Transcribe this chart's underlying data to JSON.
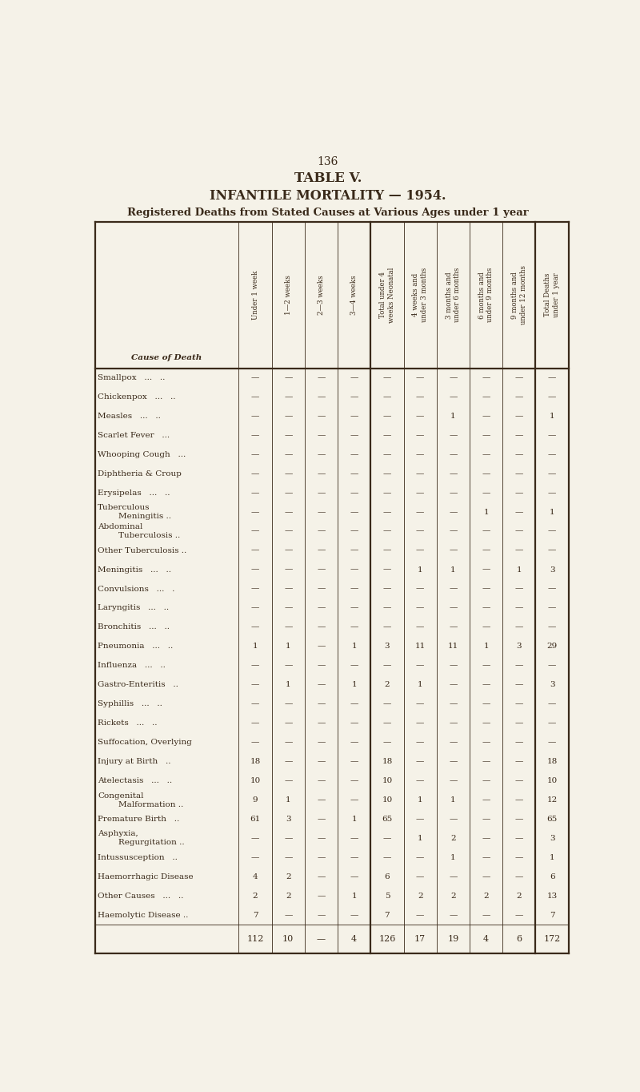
{
  "page_number": "136",
  "title": "TABLE V.",
  "subtitle": "INFANTILE MORTALITY — 1954.",
  "subtitle2": "Registered Deaths from Stated Causes at Various Ages under 1 year",
  "bg_color": "#f5f2e8",
  "text_color": "#3a2a1a",
  "col_headers": [
    "Under 1 week",
    "1—2 weeks",
    "2—3 weeks",
    "3—4 weeks",
    "Total under 4\nweeks Neonatal",
    "4 weeks and\nunder 3 months",
    "3 months and\nunder 6 months",
    "6 months and\nunder 9 months",
    "9 months and\nunder 12 months",
    "Total Deaths\nunder 1 year"
  ],
  "row_header": "Cause of Death",
  "rows": [
    {
      "label": [
        "Smallpox   ...   .."
      ],
      "vals": [
        "—",
        "—",
        "—",
        "—",
        "—",
        "—",
        "—",
        "—",
        "—",
        "—"
      ]
    },
    {
      "label": [
        "Chickenpox   ...   .."
      ],
      "vals": [
        "—",
        "—",
        "—",
        "—",
        "—",
        "—",
        "—",
        "—",
        "—",
        "—"
      ]
    },
    {
      "label": [
        "Measles   ...   .."
      ],
      "vals": [
        "—",
        "—",
        "—",
        "—",
        "—",
        "—",
        "1",
        "—",
        "—",
        "1"
      ]
    },
    {
      "label": [
        "Scarlet Fever   ..."
      ],
      "vals": [
        "—",
        "—",
        "—",
        "—",
        "—",
        "—",
        "—",
        "—",
        "—",
        "—"
      ]
    },
    {
      "label": [
        "Whooping Cough   ..."
      ],
      "vals": [
        "—",
        "—",
        "—",
        "—",
        "—",
        "—",
        "—",
        "—",
        "—",
        "—"
      ]
    },
    {
      "label": [
        "Diphtheria & Croup"
      ],
      "vals": [
        "—",
        "—",
        "—",
        "—",
        "—",
        "—",
        "—",
        "—",
        "—",
        "—"
      ]
    },
    {
      "label": [
        "Erysipelas   ...   .."
      ],
      "vals": [
        "—",
        "—",
        "—",
        "—",
        "—",
        "—",
        "—",
        "—",
        "—",
        "—"
      ]
    },
    {
      "label": [
        "Tuberculous",
        "        Meningitis .."
      ],
      "vals": [
        "—",
        "—",
        "—",
        "—",
        "—",
        "—",
        "—",
        "1",
        "—",
        "1"
      ],
      "two_line": true
    },
    {
      "label": [
        "Abdominal",
        "        Tuberculosis .."
      ],
      "vals": [
        "—",
        "—",
        "—",
        "—",
        "—",
        "—",
        "—",
        "—",
        "—",
        "—"
      ],
      "two_line": true
    },
    {
      "label": [
        "Other Tuberculosis .."
      ],
      "vals": [
        "—",
        "—",
        "—",
        "—",
        "—",
        "—",
        "—",
        "—",
        "—",
        "—"
      ]
    },
    {
      "label": [
        "Meningitis   ...   .."
      ],
      "vals": [
        "—",
        "—",
        "—",
        "—",
        "—",
        "1",
        "1",
        "—",
        "1",
        "3"
      ]
    },
    {
      "label": [
        "Convulsions   ...   ."
      ],
      "vals": [
        "—",
        "—",
        "—",
        "—",
        "—",
        "—",
        "—",
        "—",
        "—",
        "—"
      ]
    },
    {
      "label": [
        "Laryngitis   ...   .."
      ],
      "vals": [
        "—",
        "—",
        "—",
        "—",
        "—",
        "—",
        "—",
        "—",
        "—",
        "—"
      ]
    },
    {
      "label": [
        "Bronchitis   ...   .."
      ],
      "vals": [
        "—",
        "—",
        "—",
        "—",
        "—",
        "—",
        "—",
        "—",
        "—",
        "—"
      ]
    },
    {
      "label": [
        "Pneumonia   ...   .."
      ],
      "vals": [
        "1",
        "1",
        "—",
        "1",
        "3",
        "11",
        "11",
        "1",
        "3",
        "29"
      ]
    },
    {
      "label": [
        "Influenza   ...   .."
      ],
      "vals": [
        "—",
        "—",
        "—",
        "—",
        "—",
        "—",
        "—",
        "—",
        "—",
        "—"
      ]
    },
    {
      "label": [
        "Gastro-Enteritis   .."
      ],
      "vals": [
        "—",
        "1",
        "—",
        "1",
        "2",
        "1",
        "—",
        "—",
        "—",
        "3"
      ]
    },
    {
      "label": [
        "Syphillis   ...   .."
      ],
      "vals": [
        "—",
        "—",
        "—",
        "—",
        "—",
        "—",
        "—",
        "—",
        "—",
        "—"
      ]
    },
    {
      "label": [
        "Rickets   ...   .."
      ],
      "vals": [
        "—",
        "—",
        "—",
        "—",
        "—",
        "—",
        "—",
        "—",
        "—",
        "—"
      ]
    },
    {
      "label": [
        "Suffocation, Overlying"
      ],
      "vals": [
        "—",
        "—",
        "—",
        "—",
        "—",
        "—",
        "—",
        "—",
        "—",
        "—"
      ]
    },
    {
      "label": [
        "Injury at Birth   .."
      ],
      "vals": [
        "18",
        "—",
        "—",
        "—",
        "18",
        "—",
        "—",
        "—",
        "—",
        "18"
      ]
    },
    {
      "label": [
        "Atelectasis   ...   .."
      ],
      "vals": [
        "10",
        "—",
        "—",
        "—",
        "10",
        "—",
        "—",
        "—",
        "—",
        "10"
      ]
    },
    {
      "label": [
        "Congenital",
        "        Malformation .."
      ],
      "vals": [
        "9",
        "1",
        "—",
        "—",
        "10",
        "1",
        "1",
        "—",
        "—",
        "12"
      ],
      "two_line": true
    },
    {
      "label": [
        "Premature Birth   .."
      ],
      "vals": [
        "61",
        "3",
        "—",
        "1",
        "65",
        "—",
        "—",
        "—",
        "—",
        "65"
      ]
    },
    {
      "label": [
        "Asphyxia,",
        "        Regurgitation .."
      ],
      "vals": [
        "—",
        "—",
        "—",
        "—",
        "—",
        "1",
        "2",
        "—",
        "—",
        "3"
      ],
      "two_line": true
    },
    {
      "label": [
        "Intussusception   .."
      ],
      "vals": [
        "—",
        "—",
        "—",
        "—",
        "—",
        "—",
        "1",
        "—",
        "—",
        "1"
      ]
    },
    {
      "label": [
        "Haemorrhagic Disease"
      ],
      "vals": [
        "4",
        "2",
        "—",
        "—",
        "6",
        "—",
        "—",
        "—",
        "—",
        "6"
      ]
    },
    {
      "label": [
        "Other Causes   ...   .."
      ],
      "vals": [
        "2",
        "2",
        "—",
        "1",
        "5",
        "2",
        "2",
        "2",
        "2",
        "13"
      ]
    },
    {
      "label": [
        "Haemolytic Disease .."
      ],
      "vals": [
        "7",
        "—",
        "—",
        "—",
        "7",
        "—",
        "—",
        "—",
        "—",
        "7"
      ]
    }
  ],
  "totals": [
    "112",
    "10",
    "—",
    "4",
    "126",
    "17",
    "19",
    "4",
    "6",
    "172"
  ]
}
